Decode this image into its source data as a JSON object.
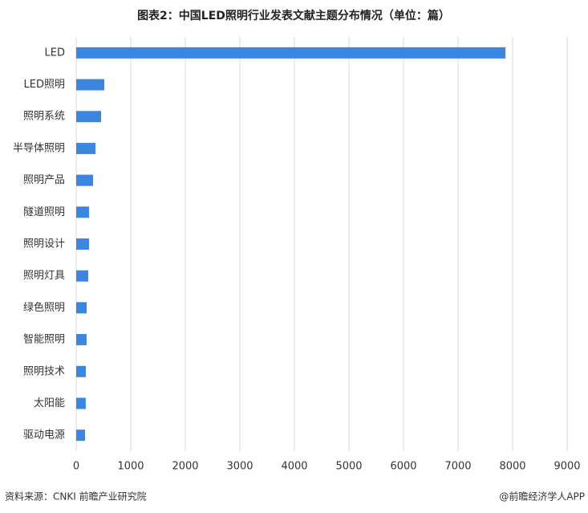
{
  "chart_data": {
    "type": "barh",
    "title": "图表2：中国LED照明行业发表文献主题分布情况（单位：篇）",
    "categories": [
      "LED",
      "LED照明",
      "照明系统",
      "半导体照明",
      "照明产品",
      "隧道照明",
      "照明设计",
      "照明灯具",
      "绿色照明",
      "智能照明",
      "照明技术",
      "太阳能",
      "驱动电源"
    ],
    "values": [
      7870,
      515,
      456,
      353,
      309,
      235,
      235,
      220,
      191,
      190,
      176,
      175,
      162
    ],
    "color": "#3a86e0",
    "xlim": [
      0,
      9000
    ],
    "xticks": [
      0,
      1000,
      2000,
      3000,
      4000,
      5000,
      6000,
      7000,
      8000,
      9000
    ],
    "grid": true
  },
  "footer": {
    "source": "资料来源：CNKI 前瞻产业研究院",
    "credit": "@前瞻经济学人APP"
  }
}
